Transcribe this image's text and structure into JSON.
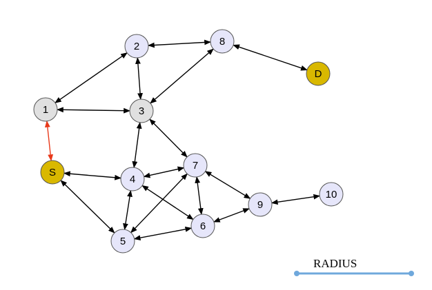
{
  "nodes": [
    {
      "id": "1",
      "label": "1",
      "kind": "visited"
    },
    {
      "id": "2",
      "label": "2",
      "kind": "normal"
    },
    {
      "id": "3",
      "label": "3",
      "kind": "visited"
    },
    {
      "id": "4",
      "label": "4",
      "kind": "normal"
    },
    {
      "id": "5",
      "label": "5",
      "kind": "normal"
    },
    {
      "id": "6",
      "label": "6",
      "kind": "normal"
    },
    {
      "id": "7",
      "label": "7",
      "kind": "normal"
    },
    {
      "id": "8",
      "label": "8",
      "kind": "normal"
    },
    {
      "id": "9",
      "label": "9",
      "kind": "normal"
    },
    {
      "id": "10",
      "label": "10",
      "kind": "normal"
    },
    {
      "id": "S",
      "label": "S",
      "kind": "endpoint"
    },
    {
      "id": "D",
      "label": "D",
      "kind": "endpoint"
    }
  ],
  "edges": [
    {
      "from": "2",
      "to": "8",
      "highlight": false
    },
    {
      "from": "2",
      "to": "1",
      "highlight": false
    },
    {
      "from": "2",
      "to": "3",
      "highlight": false
    },
    {
      "from": "8",
      "to": "3",
      "highlight": false
    },
    {
      "from": "8",
      "to": "D",
      "highlight": false
    },
    {
      "from": "1",
      "to": "3",
      "highlight": false
    },
    {
      "from": "1",
      "to": "S",
      "highlight": true
    },
    {
      "from": "3",
      "to": "4",
      "highlight": false
    },
    {
      "from": "3",
      "to": "7",
      "highlight": false
    },
    {
      "from": "S",
      "to": "4",
      "highlight": false
    },
    {
      "from": "S",
      "to": "5",
      "highlight": false
    },
    {
      "from": "4",
      "to": "7",
      "highlight": false
    },
    {
      "from": "4",
      "to": "5",
      "highlight": false
    },
    {
      "from": "4",
      "to": "6",
      "highlight": false
    },
    {
      "from": "7",
      "to": "5",
      "highlight": false
    },
    {
      "from": "7",
      "to": "6",
      "highlight": false
    },
    {
      "from": "7",
      "to": "9",
      "highlight": false
    },
    {
      "from": "5",
      "to": "6",
      "highlight": false
    },
    {
      "from": "6",
      "to": "9",
      "highlight": false
    },
    {
      "from": "9",
      "to": "10",
      "highlight": false
    }
  ],
  "legend": {
    "radius_label": "RADIUS"
  },
  "colors": {
    "node_normal": "#e6e6fa",
    "node_visited": "#e0e0e0",
    "node_endpoint": "#d9b800",
    "node_stroke": "#555555",
    "edge": "#000000",
    "edge_highlight": "#e8391a",
    "radius_line": "#6fa8dc"
  }
}
